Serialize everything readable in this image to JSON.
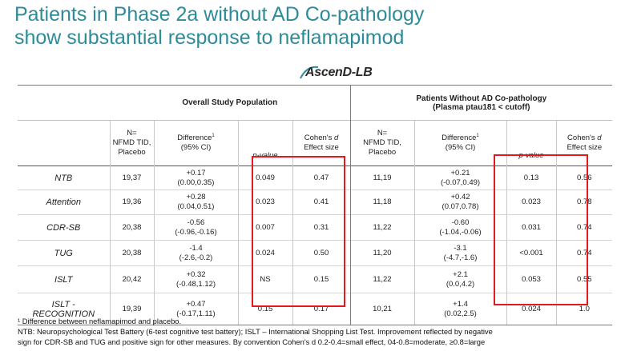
{
  "title": "Patients in Phase 2a without AD Co-pathology show substantial response to neflamapimod",
  "logo_text": "AscenD-LB",
  "groups": {
    "overall": "Overall Study Population",
    "without_line1": "Patients Without AD Co-pathology",
    "without_line2": "(Plasma ptau181 < cutoff)"
  },
  "headers": {
    "n_line1": "N=",
    "n_line2": "NFMD TID,",
    "n_line3": "Placebo",
    "diff_line1": "Difference",
    "diff_sup": "1",
    "diff_line2": "(95% CI)",
    "p": "p-value",
    "cohen_line1": "Cohen's",
    "cohen_d": "d",
    "cohen_line2": "Effect size"
  },
  "rows": [
    {
      "label": "NTB",
      "n1": "19,37",
      "d1a": "+0.17",
      "d1b": "(0.00,0.35)",
      "p1": "0.049",
      "e1": "0.47",
      "n2": "11,19",
      "d2a": "+0.21",
      "d2b": "(-0.07,0.49)",
      "p2": "0.13",
      "e2": "0.56"
    },
    {
      "label": "Attention",
      "n1": "19,36",
      "d1a": "+0.28",
      "d1b": "(0.04,0.51)",
      "p1": "0.023",
      "e1": "0.41",
      "n2": "11,18",
      "d2a": "+0.42",
      "d2b": "(0.07,0.78)",
      "p2": "0.023",
      "e2": "0.78"
    },
    {
      "label": "CDR-SB",
      "n1": "20,38",
      "d1a": "-0.56",
      "d1b": "(-0.96,-0.16)",
      "p1": "0.007",
      "e1": "0.31",
      "n2": "11,22",
      "d2a": "-0.60",
      "d2b": "(-1.04,-0.06)",
      "p2": "0.031",
      "e2": "0.74"
    },
    {
      "label": "TUG",
      "n1": "20,38",
      "d1a": "-1.4",
      "d1b": "(-2.6,-0.2)",
      "p1": "0.024",
      "e1": "0.50",
      "n2": "11,20",
      "d2a": "-3.1",
      "d2b": "(-4.7,-1.6)",
      "p2": "<0.001",
      "e2": "0.74"
    },
    {
      "label": "ISLT",
      "n1": "20,42",
      "d1a": "+0.32",
      "d1b": "(-0.48,1.12)",
      "p1": "NS",
      "e1": "0.15",
      "n2": "11,22",
      "d2a": "+2.1",
      "d2b": "(0.0,4.2)",
      "p2": "0.053",
      "e2": "0.55"
    },
    {
      "label1": "ISLT -",
      "label2": "RECOGNITION",
      "n1": "19,39",
      "d1a": "+0.47",
      "d1b": "(-0.17,1.11)",
      "p1": "0.15",
      "e1": "0.17",
      "n2": "10,21",
      "d2a": "+1.4",
      "d2b": "(0.02,2.5)",
      "p2": "0.024",
      "e2": "1.0"
    }
  ],
  "footnote": {
    "line1": "¹ Difference between neflamapimod and placebo.",
    "line2": "NTB: Neuropsychological Test Battery (6-test cognitive test battery); ISLT – International Shopping List Test. Improvement reflected by negative",
    "line3": "sign for CDR-SB and TUG and positive sign for other measures. By convention Cohen's d 0.2-0.4=small effect, 04-0.8=moderate, ≥0.8=large"
  },
  "colors": {
    "title": "#2e8b9a",
    "highlight": "#e5191d"
  }
}
